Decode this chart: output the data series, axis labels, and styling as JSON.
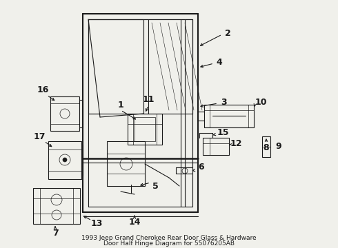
{
  "bg_color": "#f0f0eb",
  "line_color": "#1a1a1a",
  "title_line1": "1993 Jeep Grand Cherokee Rear Door Glass & Hardware",
  "title_line2": "Door Half Hinge Diagram for 55076205AB",
  "title_fontsize": 6.5,
  "label_fontsize": 9,
  "figsize": [
    4.9,
    3.6
  ],
  "dpi": 100
}
